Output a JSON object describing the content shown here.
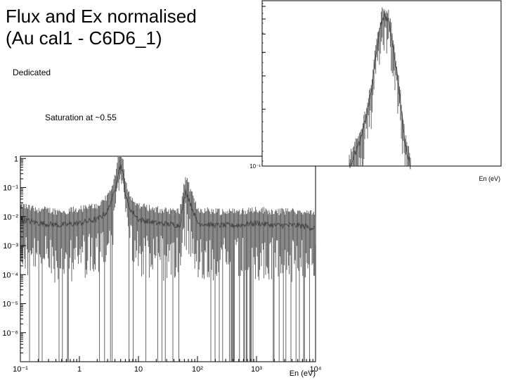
{
  "page": {
    "title": "Flux and Ex normalised\n(Au cal1 - C6D6_1)",
    "notes": [
      "Dedicated",
      "Saturation at ~0.55"
    ]
  },
  "chart_data": [
    {
      "type": "line",
      "title": "",
      "xlabel": "En (eV)",
      "ylabel": "",
      "x_scale": "log",
      "y_scale": "log",
      "xlim": [
        0.1,
        10000
      ],
      "ylim": [
        1e-07,
        1.2
      ],
      "x_tick_labels": [
        "10⁻¹",
        "1",
        "10",
        "10²",
        "10³",
        "10⁴"
      ],
      "y_tick_labels": [
        "1",
        "10⁻¹",
        "10⁻²",
        "10⁻³",
        "10⁻⁴",
        "10⁻⁵",
        "10⁻⁶"
      ],
      "x_ticks": [
        0.1,
        1,
        10,
        100,
        1000,
        10000
      ],
      "y_ticks": [
        1,
        0.1,
        0.01,
        0.001,
        0.0001,
        1e-05,
        1e-06
      ],
      "grid": false,
      "legend": false,
      "color": "#444444",
      "series": [
        {
          "x": [
            0.1,
            0.2,
            0.5,
            1,
            2,
            3,
            4,
            4.5,
            5,
            5.5,
            6,
            7,
            10,
            20,
            50,
            63,
            100,
            200,
            500,
            1000,
            2000,
            5000,
            10000
          ],
          "y": [
            0.008,
            0.006,
            0.005,
            0.006,
            0.008,
            0.015,
            0.08,
            0.3,
            0.6,
            0.3,
            0.06,
            0.02,
            0.008,
            0.006,
            0.005,
            0.08,
            0.006,
            0.005,
            0.005,
            0.006,
            0.005,
            0.005,
            0.004
          ]
        }
      ]
    },
    {
      "type": "line",
      "title": "",
      "xlabel": "En (eV)",
      "ylabel": "",
      "x_scale": "log",
      "y_scale": "log",
      "x_tick_labels": [],
      "y_tick_labels": [
        "10⁻¹"
      ],
      "y_ticks": [
        0.1
      ],
      "grid": false,
      "legend": false,
      "color": "#444444",
      "series": [
        {
          "x": [
            3.0,
            3.6,
            4.2,
            4.6,
            5.0,
            5.4,
            5.8,
            6.4,
            7.0,
            7.6
          ],
          "y": [
            0.1,
            0.14,
            0.25,
            0.45,
            0.62,
            0.6,
            0.45,
            0.25,
            0.13,
            0.1
          ]
        }
      ]
    }
  ]
}
